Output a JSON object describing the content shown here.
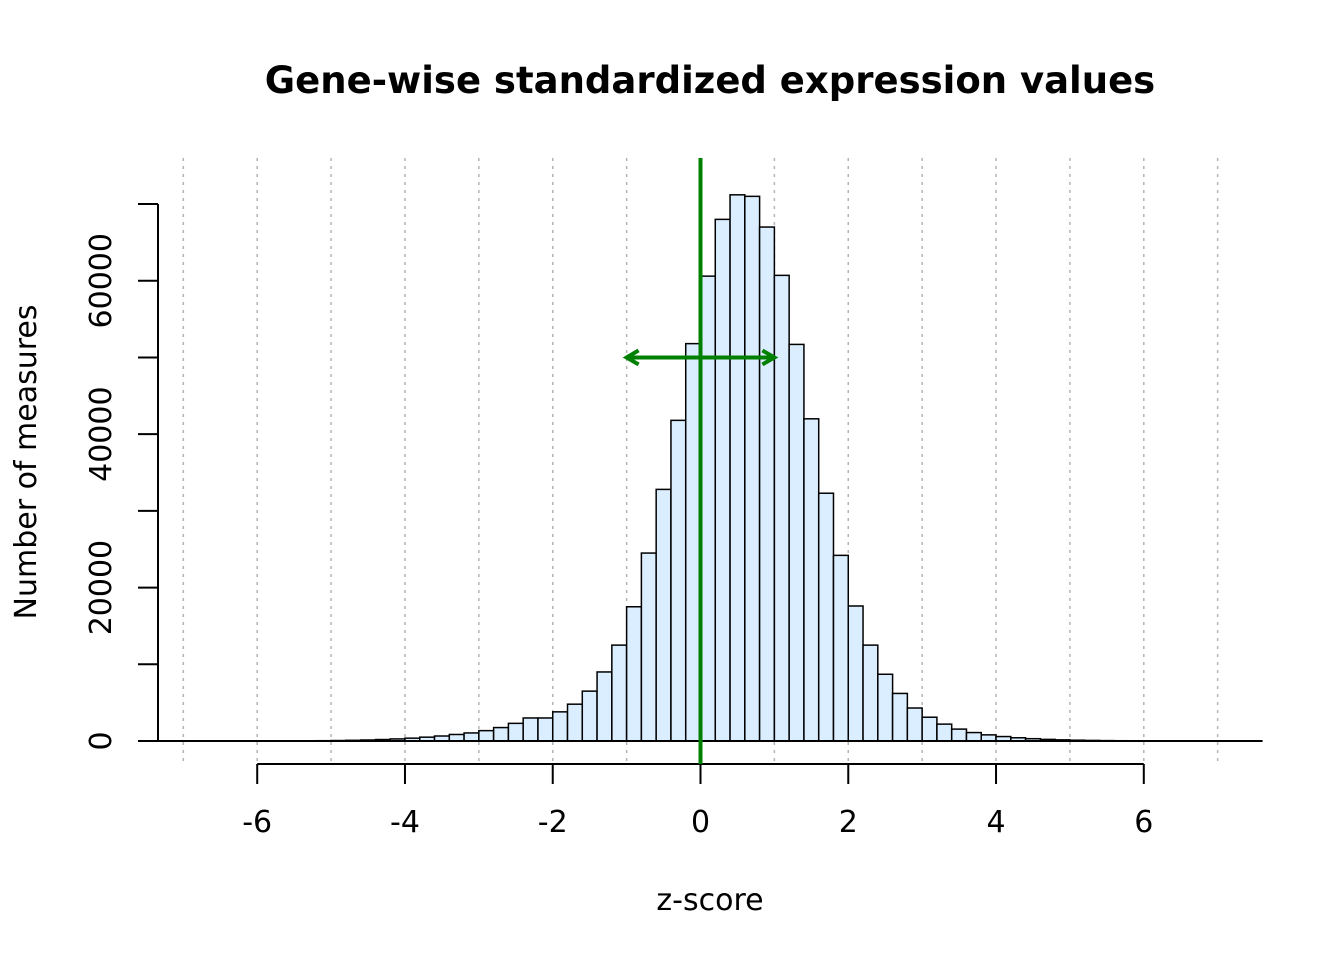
{
  "chart_data": {
    "type": "bar",
    "subtype": "histogram",
    "title": "Gene-wise standardized expression values",
    "xlabel": "z-score",
    "ylabel": "Number of measures",
    "xlim": [
      -7.6,
      7.6
    ],
    "ylim": [
      0,
      76000
    ],
    "x_ticks": [
      -6,
      -4,
      -2,
      0,
      2,
      4,
      6
    ],
    "y_ticks": [
      0,
      10000,
      20000,
      30000,
      40000,
      50000,
      60000,
      70000
    ],
    "y_tick_labels": [
      0,
      20000,
      40000,
      60000
    ],
    "grid": {
      "vertical": [
        -7,
        -6,
        -5,
        -4,
        -3,
        -2,
        -1,
        0,
        1,
        2,
        3,
        4,
        5,
        6,
        7
      ],
      "style": "dotted"
    },
    "bin_width": 0.2,
    "bin_start": -7.4,
    "bin_counts": [
      1,
      1,
      2,
      2,
      3,
      4,
      6,
      8,
      12,
      18,
      27,
      40,
      60,
      90,
      130,
      190,
      270,
      370,
      500,
      650,
      850,
      1050,
      1350,
      1750,
      2300,
      3000,
      3000,
      3800,
      4800,
      6500,
      9000,
      12500,
      17500,
      24500,
      32800,
      41800,
      51800,
      60600,
      68000,
      71200,
      71000,
      67000,
      60700,
      51700,
      42000,
      32300,
      24200,
      17600,
      12500,
      8700,
      6200,
      4300,
      3100,
      2200,
      1550,
      1100,
      800,
      580,
      420,
      300,
      210,
      150,
      105,
      75,
      52,
      36,
      25,
      17,
      11,
      7,
      5,
      3,
      2,
      1,
      1,
      0
    ],
    "colors": {
      "bar_fill": "#dbeeff",
      "bar_stroke": "#000000",
      "mean_line": "#008000",
      "sd_arrow": "#008000"
    },
    "annotations": [
      {
        "type": "vertical-line",
        "x": 0,
        "color": "#008000",
        "meaning": "mean"
      },
      {
        "type": "double-arrow",
        "x_from": -1,
        "x_to": 1,
        "y": 50000,
        "color": "#008000",
        "meaning": "standard deviation"
      }
    ]
  }
}
